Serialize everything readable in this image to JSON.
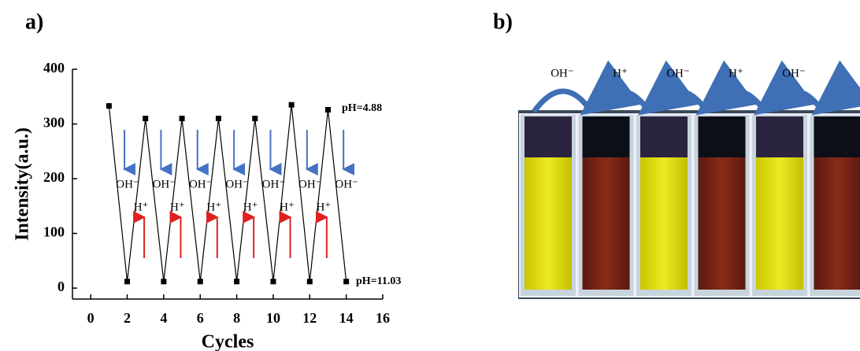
{
  "chart_data": {
    "type": "line",
    "panel_label": "a)",
    "xlabel": "Cycles",
    "ylabel": "Intensity(a.u.)",
    "x": [
      1,
      2,
      3,
      4,
      5,
      6,
      7,
      8,
      9,
      10,
      11,
      12,
      13,
      14
    ],
    "series": [
      {
        "color": "#000000",
        "values": [
          333,
          12,
          310,
          12,
          310,
          12,
          310,
          12,
          310,
          12,
          335,
          12,
          326,
          12
        ]
      }
    ],
    "xlim": [
      -1,
      16
    ],
    "xticks": [
      0,
      2,
      4,
      6,
      8,
      10,
      12,
      14,
      16
    ],
    "ylim": [
      -20,
      400
    ],
    "yticks": [
      0,
      100,
      200,
      300,
      400
    ],
    "annotations": {
      "base_ion": "OH⁻",
      "acid_ion": "H⁺",
      "acid_ph": "pH=4.88",
      "base_ph": "pH=11.03"
    }
  },
  "photo": {
    "panel_label": "b)",
    "arrow_labels": [
      "OH⁻",
      "H⁺",
      "OH⁻",
      "H⁺",
      "OH⁻"
    ]
  }
}
